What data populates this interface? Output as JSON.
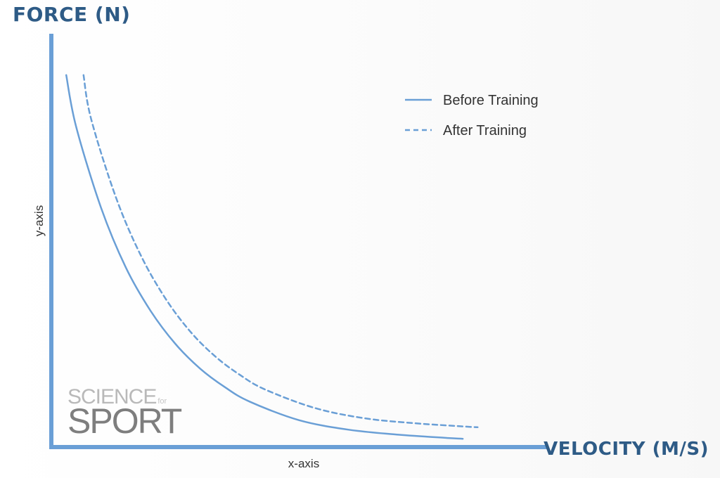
{
  "chart_data": {
    "type": "line",
    "title": "",
    "ylabel_title": "FORCE (N)",
    "xlabel_title": "VELOCITY (M/S)",
    "ylabel": "y-axis",
    "xlabel": "x-axis",
    "grid": false,
    "legend_position": "top-right",
    "xlim": [
      0,
      10
    ],
    "ylim": [
      0,
      10
    ],
    "series": [
      {
        "name": "Before Training",
        "style": "solid",
        "color": "#6a9fd6",
        "x": [
          0.3,
          0.5,
          1.0,
          1.5,
          2.0,
          2.5,
          3.0,
          3.5,
          4.0,
          5.0,
          6.0,
          7.0,
          8.0,
          8.3
        ],
        "y": [
          9.0,
          7.75,
          5.8,
          4.35,
          3.3,
          2.5,
          1.9,
          1.45,
          1.1,
          0.65,
          0.42,
          0.3,
          0.22,
          0.2
        ]
      },
      {
        "name": "After Training",
        "style": "dashed",
        "color": "#6a9fd6",
        "x": [
          0.65,
          0.8,
          1.3,
          1.8,
          2.3,
          2.8,
          3.3,
          3.8,
          4.3,
          5.3,
          6.3,
          7.3,
          8.3,
          8.6
        ],
        "y": [
          9.0,
          7.95,
          6.05,
          4.65,
          3.6,
          2.8,
          2.2,
          1.75,
          1.4,
          0.95,
          0.7,
          0.58,
          0.5,
          0.48
        ]
      }
    ]
  },
  "watermark": {
    "line1": "SCIENCE",
    "line1_small": "for",
    "line2": "SPORT"
  },
  "colors": {
    "axis": "#6a9fd6",
    "curve": "#6a9fd6",
    "title": "#2e5b86"
  }
}
